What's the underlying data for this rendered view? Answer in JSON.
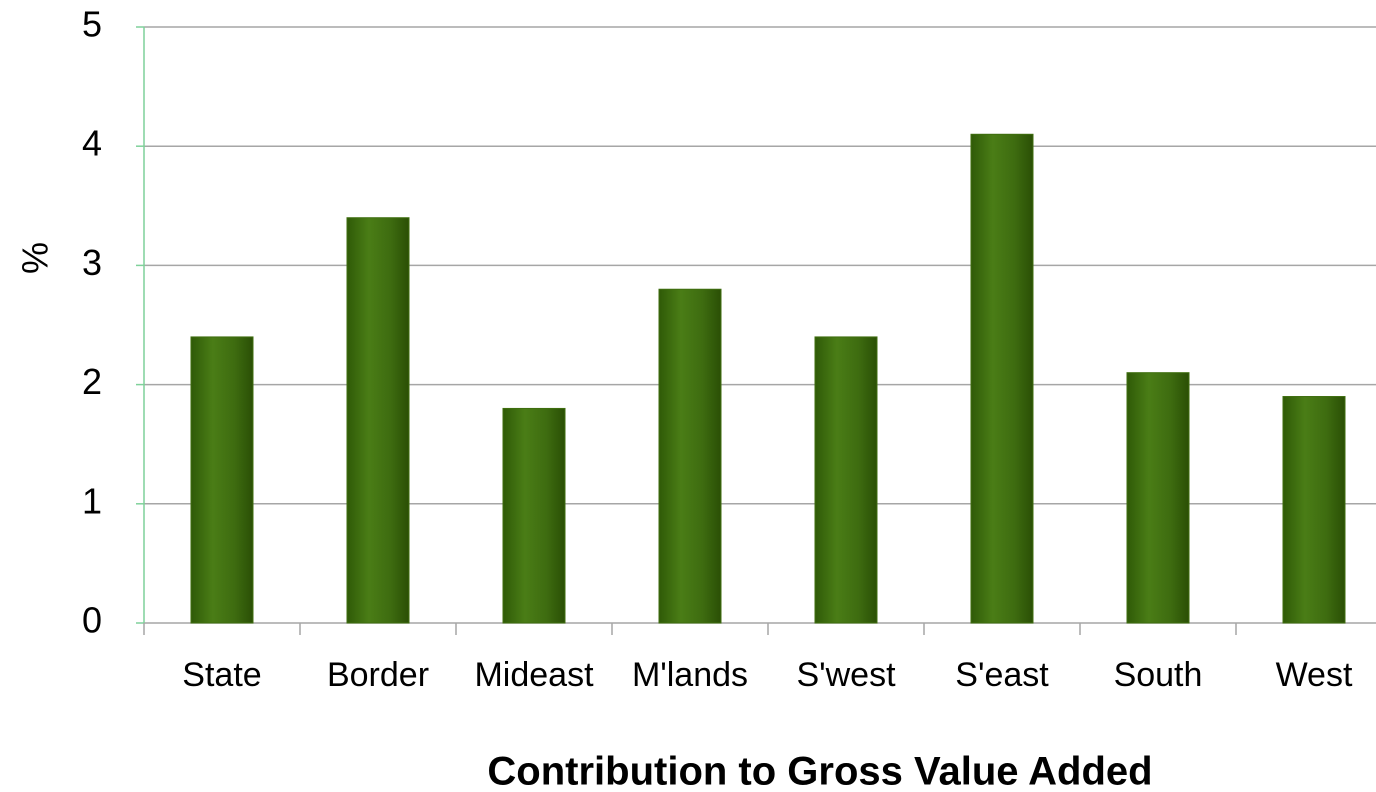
{
  "chart_data": {
    "type": "bar",
    "x_label": "Contribution to Gross Value Added",
    "y_label": "%",
    "categories": [
      "State",
      "Border",
      "Mideast",
      "M'lands",
      "S'west",
      "S'east",
      "South",
      "West"
    ],
    "values": [
      2.4,
      3.4,
      1.8,
      2.8,
      2.4,
      4.1,
      2.1,
      1.9
    ],
    "color": "#3f6e0f",
    "ylim": [
      0,
      5
    ],
    "yticks": [
      0,
      1,
      2,
      3,
      4,
      5
    ],
    "grid": true
  }
}
